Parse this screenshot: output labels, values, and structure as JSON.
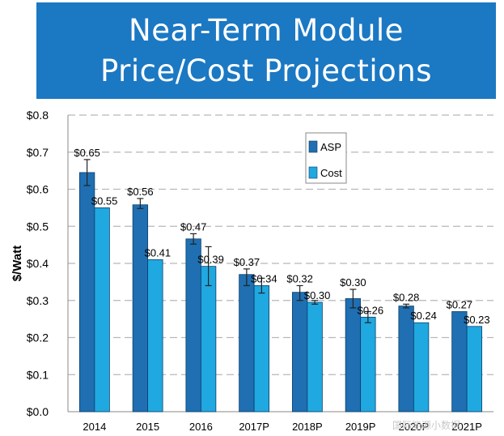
{
  "header": {
    "title_line1": "Near-Term Module",
    "title_line2": "Price/Cost Projections"
  },
  "watermark": {
    "text": "国际能源小数据"
  },
  "chart_data": {
    "type": "bar",
    "title": "Near-Term Module Price/Cost Projections",
    "xlabel": "",
    "ylabel": "$/Watt",
    "ylim": [
      0,
      0.8
    ],
    "yticks": [
      0.0,
      0.1,
      0.2,
      0.3,
      0.4,
      0.5,
      0.6,
      0.7,
      0.8
    ],
    "ytick_labels": [
      "$0.0",
      "$0.1",
      "$0.2",
      "$0.3",
      "$0.4",
      "$0.5",
      "$0.6",
      "$0.7",
      "$0.8"
    ],
    "categories": [
      "2014",
      "2015",
      "2016",
      "2017P",
      "2018P",
      "2019P",
      "2020P",
      "2021P"
    ],
    "series": [
      {
        "name": "ASP",
        "color": "#1f6fb2",
        "values": [
          0.645,
          0.558,
          0.466,
          0.37,
          0.322,
          0.305,
          0.285,
          0.27
        ],
        "labels": [
          "$0.65",
          "$0.56",
          "$0.47",
          "$0.37",
          "$0.32",
          "$0.30",
          "$0.28",
          "$0.27"
        ],
        "error_low": [
          0.61,
          0.548,
          0.452,
          0.34,
          0.3,
          0.28,
          0.28,
          null
        ],
        "error_high": [
          0.68,
          0.575,
          0.48,
          0.385,
          0.34,
          0.33,
          0.29,
          null
        ]
      },
      {
        "name": "Cost",
        "color": "#20a8e0",
        "values": [
          0.55,
          0.41,
          0.392,
          0.34,
          0.295,
          0.255,
          0.24,
          0.23
        ],
        "labels": [
          "$0.55",
          "$0.41",
          "$0.39",
          "$0.34",
          "$0.30",
          "$0.26",
          "$0.24",
          "$0.23"
        ],
        "error_low": [
          null,
          null,
          0.34,
          0.32,
          0.29,
          0.24,
          null,
          null
        ],
        "error_high": [
          null,
          null,
          0.445,
          0.36,
          0.3,
          0.27,
          null,
          null
        ]
      }
    ],
    "legend_position": "top-right",
    "grid": true
  }
}
